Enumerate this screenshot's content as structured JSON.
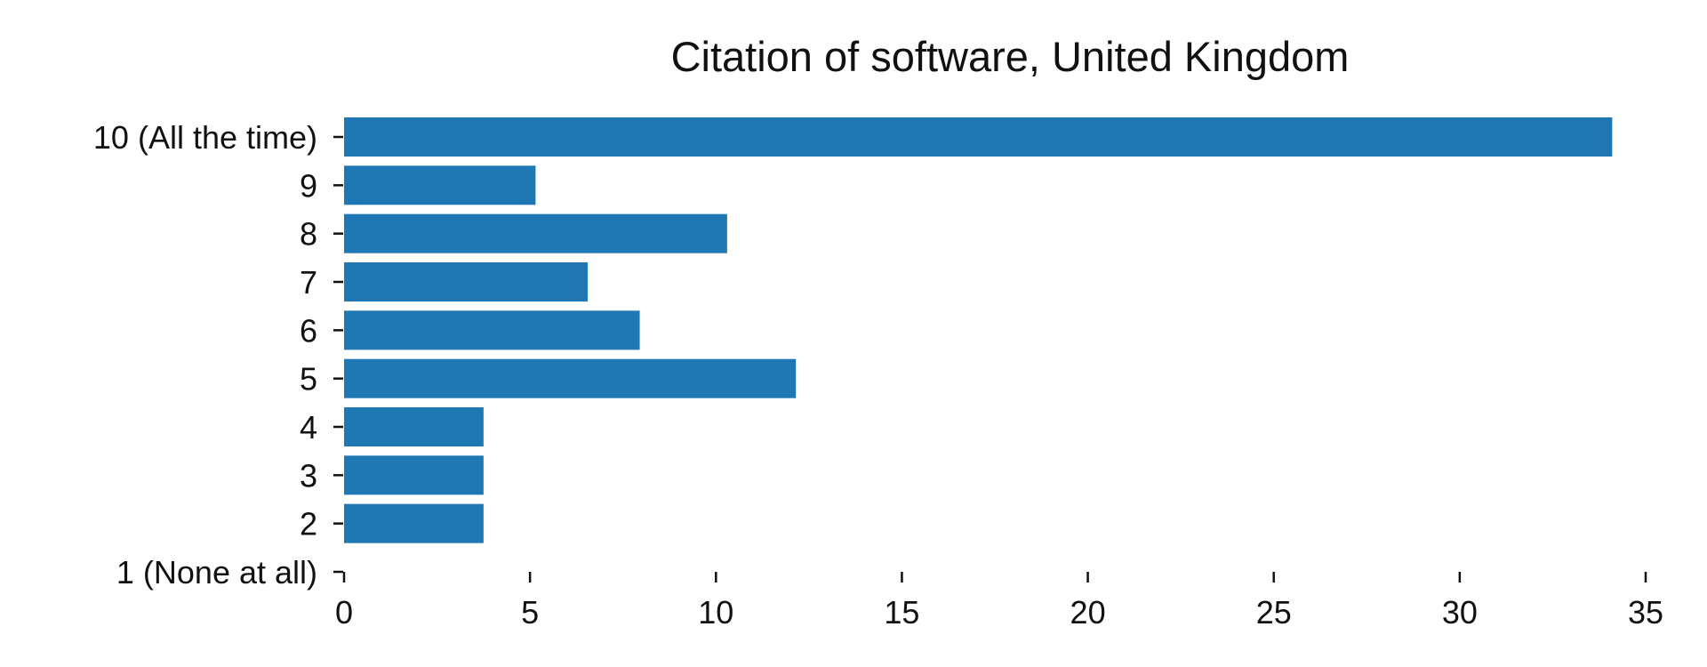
{
  "chart_data": {
    "type": "bar",
    "orientation": "horizontal",
    "title": "Citation of software, United Kingdom",
    "xlabel": "",
    "ylabel": "",
    "categories": [
      "1 (None at all)",
      "2",
      "3",
      "4",
      "5",
      "6",
      "7",
      "8",
      "9",
      "10 (All the time)"
    ],
    "values": [
      0,
      3.75,
      3.75,
      3.75,
      12.15,
      7.95,
      6.55,
      10.3,
      5.15,
      34.1
    ],
    "xlim": [
      0,
      35
    ],
    "xticks": [
      0,
      5,
      10,
      15,
      20,
      25,
      30,
      35
    ],
    "grid": false,
    "legend": "none",
    "colors": {
      "bar": "#1f77b4",
      "text": "#111111"
    }
  }
}
